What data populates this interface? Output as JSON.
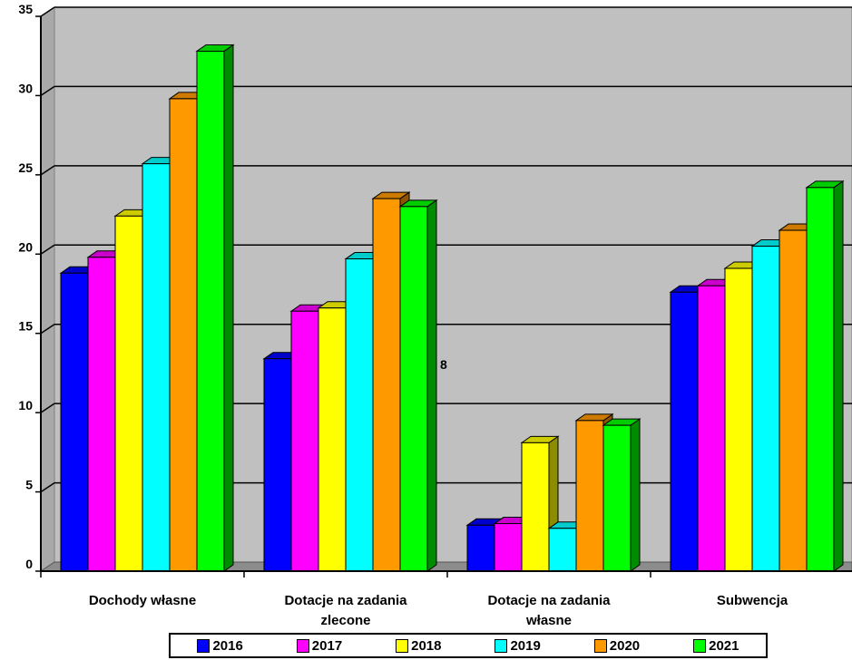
{
  "chart_data": {
    "type": "bar",
    "categories": [
      "Dochody własne",
      "Dotacje na zadania zlecone",
      "Dotacje na zadania własne",
      "Subwencja"
    ],
    "series": [
      {
        "name": "2016",
        "color": "#0000ff",
        "values": [
          18.8,
          13.4,
          2.9,
          17.6
        ]
      },
      {
        "name": "2017",
        "color": "#ff00ff",
        "values": [
          19.8,
          16.4,
          3.0,
          18.0
        ]
      },
      {
        "name": "2018",
        "color": "#ffff00",
        "values": [
          22.4,
          16.6,
          8.1,
          19.1
        ]
      },
      {
        "name": "2019",
        "color": "#00ffff",
        "values": [
          25.7,
          19.7,
          2.7,
          20.5
        ]
      },
      {
        "name": "2020",
        "color": "#ff9900",
        "values": [
          29.8,
          23.5,
          9.5,
          21.5
        ]
      },
      {
        "name": "2021",
        "color": "#00ff00",
        "values": [
          32.8,
          23.0,
          9.2,
          24.2
        ]
      }
    ],
    "ylim": [
      0,
      35
    ],
    "yticks": [
      0,
      5,
      10,
      15,
      20,
      25,
      30,
      35
    ],
    "ytick_labels": [
      "0",
      "5",
      "10",
      "15",
      "20",
      "25",
      "30",
      "35"
    ],
    "grid": true,
    "legend_position": "bottom",
    "annotations": [
      {
        "text": "8"
      }
    ],
    "plot_background": "#c0c0c0"
  },
  "legend": {
    "items": [
      {
        "label": "2016",
        "color": "#0000ff"
      },
      {
        "label": "2017",
        "color": "#ff00ff"
      },
      {
        "label": "2018",
        "color": "#ffff00"
      },
      {
        "label": "2019",
        "color": "#00ffff"
      },
      {
        "label": "2020",
        "color": "#ff9900"
      },
      {
        "label": "2021",
        "color": "#00ff00"
      }
    ]
  }
}
